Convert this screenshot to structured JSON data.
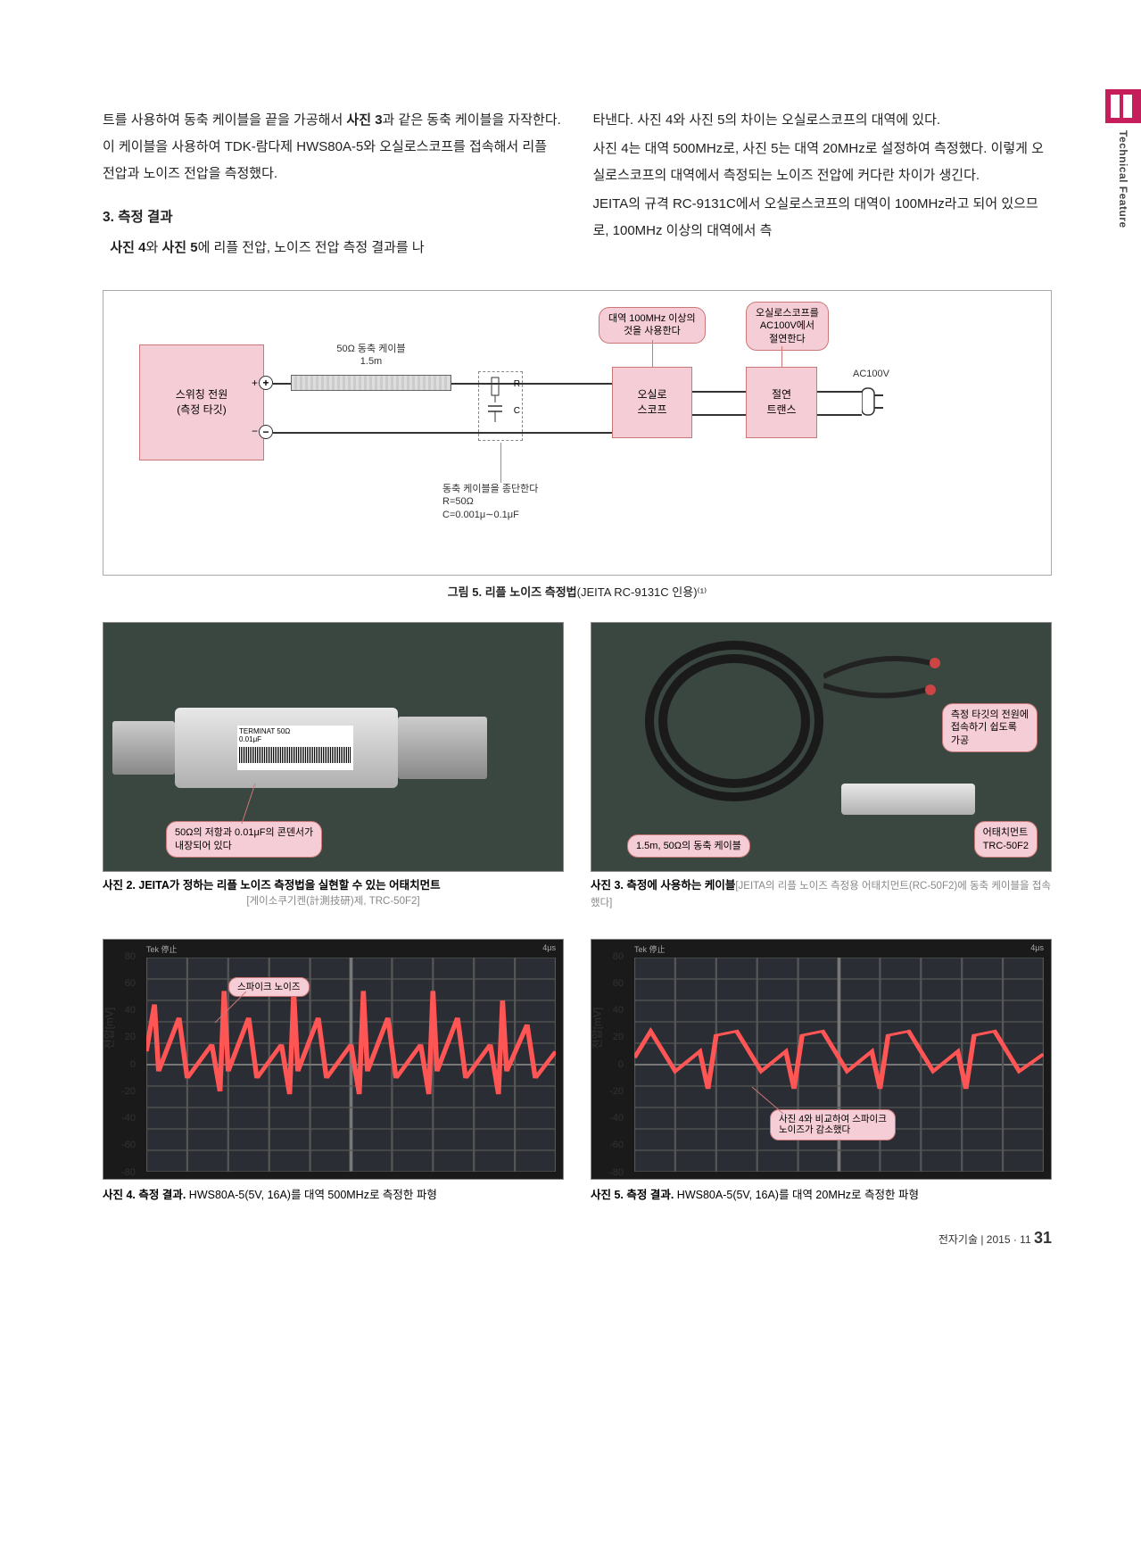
{
  "side_tab": {
    "label": "Technical Feature"
  },
  "body": {
    "left": {
      "p1": "트를 사용하여 동축 케이블을 끝을 가공해서 ",
      "p1b": "사진 3",
      "p1c": "과 같은 동축 케이블을 자작한다. 이 케이블을 사용하여 TDK-람다제 HWS80A-5와 오실로스코프를 접속해서 리플 전압과 노이즈 전압을 측정했다.",
      "head": "3. 측정 결과",
      "p2a": "사진 4",
      "p2b": "와 ",
      "p2c": "사진 5",
      "p2d": "에 리플 전압, 노이즈 전압 측정 결과를 나"
    },
    "right": {
      "p1": "타낸다. 사진 4와 사진 5의 차이는 오실로스코프의 대역에 있다.",
      "p2": "  사진 4는 대역 500MHz로, 사진 5는 대역 20MHz로 설정하여 측정했다. 이렇게 오실로스코프의 대역에서 측정되는 노이즈 전압에 커다란 차이가 생긴다.",
      "p3": "  JEITA의 규격 RC-9131C에서 오실로스코프의 대역이 100MHz라고 되어 있으므로, 100MHz 이상의 대역에서 측"
    }
  },
  "fig5": {
    "caption_b": "그림 5. 리플 노이즈 측정법",
    "caption_sub": "(JEITA RC-9131C 인용)⁽¹⁾",
    "psu_label": "스위칭 전원\n(측정 타깃)",
    "cable_label": "50Ω 동축 케이블\n1.5m",
    "scope_label": "오실로\n스코프",
    "trans_label": "절연\n트랜스",
    "ac_label": "AC100V",
    "note_bw": "대역 100MHz 이상의\n것을 사용한다",
    "note_iso": "오실로스코프를\nAC100V에서\n절연한다",
    "rc_note": "동축 케이블을 종단한다\nR=50Ω\nC=0.001μ∼0.1μF",
    "r_label": "R",
    "c_label": "C"
  },
  "photo2": {
    "caption_b": "사진 2. JEITA가 정하는 리플 노이즈 측정법을 실현할 수 있는 어태치먼트",
    "caption_sub": "[게이소쿠기켄(計測技研)제, TRC-50F2]",
    "callout1": "50Ω의 저항과 0.01μF의 콘덴서가\n내장되어 있다",
    "label_text": "TERMINAT 50Ω\n0.01μF"
  },
  "photo3": {
    "caption_b": "사진 3. 측정에 사용하는 케이블",
    "caption_sub": "[JEITA의 리플 노이즈 측정용 어태치먼트(RC-50F2)에 동축 케이블을 접속했다]",
    "callout1": "측정 타깃의 전원에\n접속하기 쉽도록\n가공",
    "callout2": "1.5m, 50Ω의 동축 케이블",
    "callout3": "어태치먼트\nTRC-50F2"
  },
  "scopeAxis": {
    "ytitle": "전압[mV]",
    "yticks": [
      80,
      60,
      40,
      20,
      0,
      -20,
      -40,
      -60,
      -80
    ],
    "timebase": "4μs",
    "tek": "Tek 停止"
  },
  "scope4": {
    "caption_b": "사진 4. 측정 결과. ",
    "caption_rest": "HWS80A-5(5V, 16A)를 대역 500MHz로 측정한 파형",
    "callout": "스파이크 노이즈"
  },
  "scope5": {
    "caption_b": "사진 5. 측정 결과. ",
    "caption_rest": "HWS80A-5(5V, 16A)를 대역 20MHz로 측정한 파형",
    "callout": "사진 4와 비교하여 스파이크\n노이즈가 감소했다"
  },
  "waveform500": [
    0,
    10,
    2,
    45,
    3,
    -5,
    8,
    35,
    10,
    -10,
    16,
    15,
    18,
    -20,
    19,
    55,
    20,
    -5,
    25,
    35,
    27,
    -10,
    33,
    15,
    35,
    -22,
    36,
    55,
    37,
    -5,
    42,
    35,
    44,
    -10,
    50,
    15,
    52,
    -22,
    53,
    55,
    54,
    -5,
    59,
    35,
    61,
    -10,
    67,
    15,
    69,
    -22,
    70,
    55,
    71,
    -5,
    76,
    35,
    78,
    -10,
    84,
    15,
    86,
    -22,
    87,
    48,
    88,
    -5,
    93,
    30,
    95,
    -10,
    100,
    10
  ],
  "waveform20": [
    0,
    5,
    4,
    25,
    10,
    -5,
    16,
    10,
    18,
    -18,
    20,
    22,
    25,
    25,
    31,
    -5,
    37,
    10,
    39,
    -18,
    41,
    22,
    46,
    25,
    52,
    -5,
    58,
    10,
    60,
    -18,
    62,
    22,
    67,
    25,
    73,
    -5,
    79,
    10,
    81,
    -18,
    83,
    22,
    88,
    25,
    94,
    -5,
    100,
    8
  ],
  "chartStyle": {
    "trace_color": "#ff5555",
    "bg_color": "#2a2d33",
    "grid_color": "#555",
    "ylim": [
      -80,
      80
    ]
  },
  "footer": {
    "mag": "전자기술",
    "date": "2015 · 11",
    "page": "31"
  }
}
